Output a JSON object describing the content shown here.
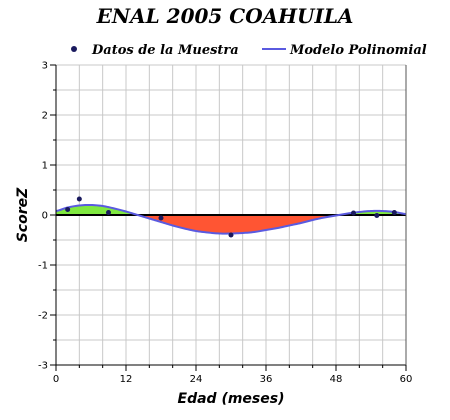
{
  "chart_data": {
    "type": "line",
    "title": "ENAL 2005 COAHUILA",
    "xlabel": "Edad (meses)",
    "ylabel": "ScoreZ",
    "xlim": [
      0,
      60
    ],
    "ylim": [
      -3,
      3
    ],
    "x_ticks": [
      0,
      12,
      24,
      36,
      48,
      60
    ],
    "y_ticks": [
      -3,
      -2,
      -1,
      0,
      1,
      2,
      3
    ],
    "grid": true,
    "legend_position": "top",
    "series": [
      {
        "name": "Datos de la Muestra",
        "kind": "scatter",
        "color": "#1a1a5e",
        "x": [
          2,
          4,
          9,
          18,
          30,
          51,
          55,
          58
        ],
        "y": [
          0.11,
          0.32,
          0.05,
          -0.06,
          -0.4,
          0.04,
          -0.01,
          0.05
        ]
      },
      {
        "name": "Modelo Polinomial",
        "kind": "line",
        "color": "#5a5ae0",
        "x": [
          0,
          2,
          4,
          6,
          8,
          10,
          12,
          14,
          16,
          18,
          20,
          22,
          24,
          26,
          28,
          30,
          32,
          34,
          36,
          38,
          40,
          42,
          44,
          46,
          48,
          50,
          52,
          54,
          56,
          58,
          60
        ],
        "y": [
          0.08,
          0.15,
          0.19,
          0.2,
          0.18,
          0.13,
          0.07,
          0.0,
          -0.07,
          -0.14,
          -0.21,
          -0.27,
          -0.32,
          -0.35,
          -0.37,
          -0.37,
          -0.36,
          -0.34,
          -0.3,
          -0.26,
          -0.21,
          -0.16,
          -0.1,
          -0.05,
          -0.01,
          0.03,
          0.06,
          0.08,
          0.08,
          0.06,
          0.02
        ]
      }
    ],
    "fill_colors": {
      "positive": "#80e840",
      "negative": "#ff5533"
    }
  }
}
